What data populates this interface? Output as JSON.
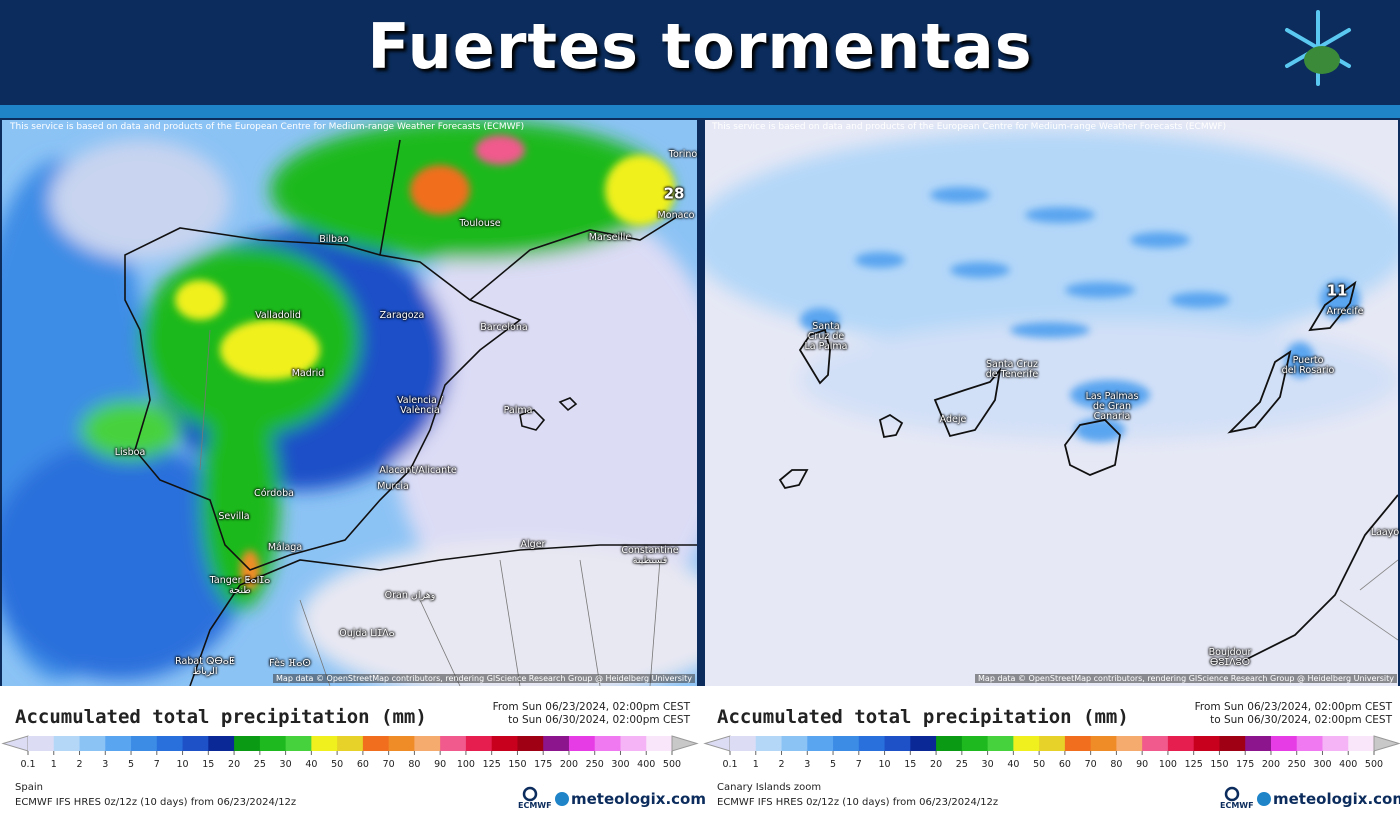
{
  "header": {
    "title": "Fuertes tormentas"
  },
  "panels": [
    {
      "attribution": "This service is based on data and products of the European Centre for Medium-range Weather Forecasts (ECMWF)",
      "map_credit": "Map data © OpenStreetMap contributors, rendering GIScience Research Group @ Heidelberg University",
      "places": [
        {
          "label": [
            "Torino"
          ],
          "pos": [
            683,
            155
          ]
        },
        {
          "label": [
            "28"
          ],
          "pos": [
            674,
            194
          ],
          "max": true
        },
        {
          "label": [
            "Monaco"
          ],
          "pos": [
            676,
            216
          ]
        },
        {
          "label": [
            "Toulouse"
          ],
          "pos": [
            480,
            224
          ]
        },
        {
          "label": [
            "Marseille"
          ],
          "pos": [
            610,
            238
          ]
        },
        {
          "label": [
            "Bilbao"
          ],
          "pos": [
            334,
            240
          ]
        },
        {
          "label": [
            "Valladolid"
          ],
          "pos": [
            278,
            316
          ]
        },
        {
          "label": [
            "Zaragoza"
          ],
          "pos": [
            402,
            316
          ]
        },
        {
          "label": [
            "Barcelona"
          ],
          "pos": [
            504,
            328
          ]
        },
        {
          "label": [
            "Madrid"
          ],
          "pos": [
            308,
            374
          ]
        },
        {
          "label": [
            "Valencia /",
            "València"
          ],
          "pos": [
            420,
            406
          ]
        },
        {
          "label": [
            "Palma"
          ],
          "pos": [
            518,
            411
          ]
        },
        {
          "label": [
            "Lisboa"
          ],
          "pos": [
            130,
            453
          ]
        },
        {
          "label": [
            "Alacant/Alicante"
          ],
          "pos": [
            418,
            471
          ]
        },
        {
          "label": [
            "Murcia"
          ],
          "pos": [
            393,
            487
          ]
        },
        {
          "label": [
            "Córdoba"
          ],
          "pos": [
            274,
            494
          ]
        },
        {
          "label": [
            "Sevilla"
          ],
          "pos": [
            234,
            517
          ]
        },
        {
          "label": [
            "Málaga"
          ],
          "pos": [
            285,
            548
          ]
        },
        {
          "label": [
            "Alger"
          ],
          "pos": [
            533,
            545
          ]
        },
        {
          "label": [
            "Constantine",
            "قسنطينة"
          ],
          "pos": [
            650,
            556
          ]
        },
        {
          "label": [
            "Tanger ⵟⴰⵏⵊⴰ",
            "طنجة"
          ],
          "pos": [
            240,
            586
          ]
        },
        {
          "label": [
            "Oran وهران"
          ],
          "pos": [
            410,
            596
          ]
        },
        {
          "label": [
            "Oujda ⵡⵊⴷⴰ"
          ],
          "pos": [
            367,
            634
          ]
        },
        {
          "label": [
            "Rabat ⵕⴱⴰⵟ",
            "الرباط"
          ],
          "pos": [
            205,
            667
          ]
        },
        {
          "label": [
            "Fès ⴼⴰⵙ"
          ],
          "pos": [
            290,
            664
          ]
        }
      ],
      "legend": {
        "title": "Accumulated total precipitation (mm)",
        "from": "From Sun 06/23/2024, 02:00pm CEST",
        "to": "to Sun 06/30/2024, 02:00pm CEST",
        "scale": [
          0.1,
          1,
          2,
          3,
          5,
          7,
          10,
          15,
          20,
          25,
          30,
          40,
          50,
          60,
          70,
          80,
          90,
          100,
          125,
          150,
          175,
          200,
          250,
          300,
          400,
          500
        ],
        "colors": [
          "#dcdcf5",
          "#b4d7f8",
          "#8cc3f5",
          "#5aa5f0",
          "#3c8ce6",
          "#2a70dc",
          "#1e50c8",
          "#0a2896",
          "#0a9a14",
          "#1eb91e",
          "#46d23c",
          "#f0f01e",
          "#e6d228",
          "#f06e1e",
          "#f08c28",
          "#f5aa6e",
          "#f05a8c",
          "#e61e50",
          "#c8001e",
          "#a00014",
          "#8c148c",
          "#e63ce6",
          "#f078f0",
          "#f5b4f5",
          "#fae6fa"
        ],
        "end_color": "#c8c8c8"
      },
      "region": "Spain",
      "model": "ECMWF IFS HRES 0z/12z (10 days) from 06/23/2024/12z",
      "logo": "ECMWF",
      "brand": "meteologix.com"
    },
    {
      "attribution": "This service is based on data and products of the European Centre for Medium-range Weather Forecasts (ECMWF)",
      "map_credit": "Map data © OpenStreetMap contributors, rendering GIScience Research Group @ Heidelberg University",
      "places": [
        {
          "label": [
            "11"
          ],
          "pos": [
            1337,
            291
          ],
          "max": true
        },
        {
          "label": [
            "Arrecife"
          ],
          "pos": [
            1345,
            312
          ]
        },
        {
          "label": [
            "Santa",
            "Cruz de",
            "La Palma"
          ],
          "pos": [
            826,
            337
          ]
        },
        {
          "label": [
            "Puerto",
            "del Rosario"
          ],
          "pos": [
            1308,
            366
          ]
        },
        {
          "label": [
            "Santa Cruz",
            "de Tenerife"
          ],
          "pos": [
            1012,
            370
          ]
        },
        {
          "label": [
            "Las Palmas",
            "de Gran",
            "Canaria"
          ],
          "pos": [
            1112,
            407
          ]
        },
        {
          "label": [
            "Adeje"
          ],
          "pos": [
            953,
            420
          ]
        },
        {
          "label": [
            "Laayo"
          ],
          "pos": [
            1385,
            533
          ]
        },
        {
          "label": [
            "Boujdour",
            "ⴱⵓⵊⴷⵓⵔ"
          ],
          "pos": [
            1230,
            658
          ]
        }
      ],
      "legend": {
        "title": "Accumulated total precipitation (mm)",
        "from": "From Sun 06/23/2024, 02:00pm CEST",
        "to": "to Sun 06/30/2024, 02:00pm CEST",
        "scale": [
          0.1,
          1,
          2,
          3,
          5,
          7,
          10,
          15,
          20,
          25,
          30,
          40,
          50,
          60,
          70,
          80,
          90,
          100,
          125,
          150,
          175,
          200,
          250,
          300,
          400,
          500
        ],
        "colors": [
          "#dcdcf5",
          "#b4d7f8",
          "#8cc3f5",
          "#5aa5f0",
          "#3c8ce6",
          "#2a70dc",
          "#1e50c8",
          "#0a2896",
          "#0a9a14",
          "#1eb91e",
          "#46d23c",
          "#f0f01e",
          "#e6d228",
          "#f06e1e",
          "#f08c28",
          "#f5aa6e",
          "#f05a8c",
          "#e61e50",
          "#c8001e",
          "#a00014",
          "#8c148c",
          "#e63ce6",
          "#f078f0",
          "#f5b4f5",
          "#fae6fa"
        ],
        "end_color": "#c8c8c8"
      },
      "region": "Canary Islands zoom",
      "model": "ECMWF IFS HRES 0z/12z (10 days) from 06/23/2024/12z",
      "logo": "ECMWF",
      "brand": "meteologix.com"
    }
  ]
}
